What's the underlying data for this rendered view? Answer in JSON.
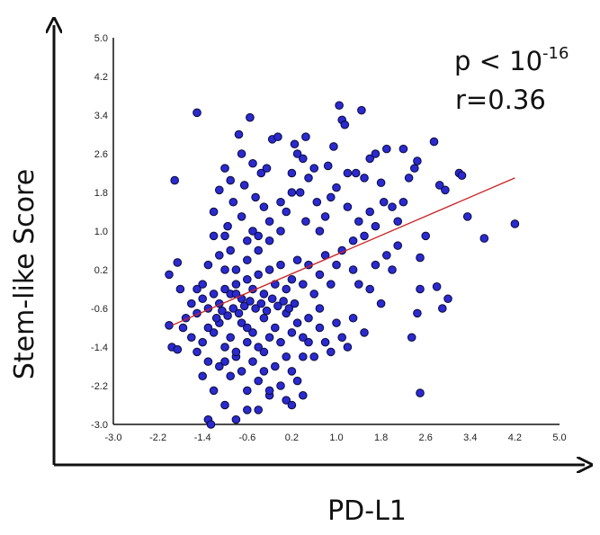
{
  "chart_data": {
    "type": "scatter",
    "xlabel": "PD-L1",
    "ylabel": "Stem-like Score",
    "annotation_p_base": "p < 10",
    "annotation_p_exp": "-16",
    "annotation_r": "r=0.36",
    "xlim": [
      -3.0,
      5.0
    ],
    "ylim": [
      -3.0,
      5.0
    ],
    "xticks": [
      "-3.0",
      "-2.2",
      "-1.4",
      "-0.6",
      "0.2",
      "1.0",
      "1.8",
      "2.6",
      "3.4",
      "4.2",
      "5.0"
    ],
    "yticks": [
      "5.0",
      "4.2",
      "3.4",
      "2.6",
      "1.8",
      "1.0",
      "0.2",
      "-0.6",
      "-1.4",
      "-2.2",
      "-3.0"
    ],
    "grid": false,
    "point_color": "#2a2ad0",
    "point_edge_color": "#0a0a3a",
    "line_color": "#cc2222",
    "regression": {
      "x": [
        -1.95,
        4.2
      ],
      "y": [
        -0.95,
        2.1
      ]
    },
    "points": [
      [
        -1.5,
        3.45
      ],
      [
        -0.55,
        3.35
      ],
      [
        -0.75,
        3.0
      ],
      [
        -1.9,
        2.05
      ],
      [
        -2.0,
        0.1
      ],
      [
        -1.85,
        0.35
      ],
      [
        -1.0,
        2.3
      ],
      [
        -1.2,
        1.4
      ],
      [
        -1.1,
        1.85
      ],
      [
        -0.95,
        1.1
      ],
      [
        -0.65,
        1.95
      ],
      [
        -0.85,
        1.6
      ],
      [
        -0.45,
        1.7
      ],
      [
        -0.35,
        2.2
      ],
      [
        -0.25,
        2.3
      ],
      [
        -0.15,
        2.9
      ],
      [
        -0.05,
        2.95
      ],
      [
        -0.3,
        1.5
      ],
      [
        -0.5,
        1.0
      ],
      [
        -0.7,
        1.3
      ],
      [
        -0.6,
        0.8
      ],
      [
        -0.9,
        0.6
      ],
      [
        -1.1,
        0.5
      ],
      [
        -1.3,
        0.3
      ],
      [
        -1.0,
        0.9
      ],
      [
        -0.8,
        0.2
      ],
      [
        -0.4,
        0.6
      ],
      [
        -0.2,
        0.8
      ],
      [
        0.0,
        1.0
      ],
      [
        0.1,
        1.4
      ],
      [
        0.2,
        2.2
      ],
      [
        0.3,
        2.6
      ],
      [
        0.4,
        2.5
      ],
      [
        0.5,
        2.1
      ],
      [
        0.6,
        2.3
      ],
      [
        0.35,
        1.8
      ],
      [
        0.45,
        1.2
      ],
      [
        0.65,
        1.6
      ],
      [
        0.7,
        1.0
      ],
      [
        0.8,
        1.3
      ],
      [
        0.9,
        1.7
      ],
      [
        1.0,
        1.9
      ],
      [
        1.05,
        3.6
      ],
      [
        1.1,
        3.3
      ],
      [
        1.15,
        3.2
      ],
      [
        1.45,
        3.5
      ],
      [
        1.2,
        2.2
      ],
      [
        1.35,
        2.2
      ],
      [
        1.5,
        2.1
      ],
      [
        1.6,
        2.5
      ],
      [
        1.7,
        2.6
      ],
      [
        1.9,
        2.7
      ],
      [
        1.8,
        2.0
      ],
      [
        1.2,
        1.5
      ],
      [
        1.3,
        0.8
      ],
      [
        1.4,
        1.2
      ],
      [
        1.5,
        0.9
      ],
      [
        1.6,
        1.4
      ],
      [
        1.7,
        1.1
      ],
      [
        1.85,
        1.6
      ],
      [
        2.0,
        1.5
      ],
      [
        2.1,
        1.2
      ],
      [
        2.2,
        1.6
      ],
      [
        2.3,
        2.1
      ],
      [
        2.4,
        2.3
      ],
      [
        2.45,
        2.45
      ],
      [
        2.2,
        2.7
      ],
      [
        2.6,
        0.9
      ],
      [
        2.5,
        0.45
      ],
      [
        2.75,
        2.85
      ],
      [
        2.85,
        1.95
      ],
      [
        2.95,
        1.85
      ],
      [
        3.2,
        2.2
      ],
      [
        3.25,
        2.15
      ],
      [
        3.35,
        1.3
      ],
      [
        3.65,
        0.85
      ],
      [
        4.2,
        1.15
      ],
      [
        2.9,
        -0.6
      ],
      [
        2.8,
        -0.15
      ],
      [
        3.0,
        -0.4
      ],
      [
        2.5,
        -0.2
      ],
      [
        2.45,
        -0.7
      ],
      [
        2.35,
        -1.2
      ],
      [
        2.5,
        -2.35
      ],
      [
        1.6,
        -0.2
      ],
      [
        1.7,
        0.3
      ],
      [
        1.9,
        0.5
      ],
      [
        2.0,
        0.2
      ],
      [
        2.1,
        0.7
      ],
      [
        1.8,
        -0.5
      ],
      [
        1.4,
        -0.1
      ],
      [
        1.3,
        0.2
      ],
      [
        1.1,
        0.6
      ],
      [
        1.0,
        0.3
      ],
      [
        0.9,
        -0.1
      ],
      [
        0.8,
        0.5
      ],
      [
        0.7,
        0.1
      ],
      [
        0.6,
        -0.3
      ],
      [
        0.5,
        0.3
      ],
      [
        0.4,
        -0.1
      ],
      [
        0.3,
        0.4
      ],
      [
        0.2,
        0.0
      ],
      [
        0.1,
        -0.2
      ],
      [
        0.0,
        0.3
      ],
      [
        -0.1,
        -0.1
      ],
      [
        -0.2,
        0.2
      ],
      [
        -0.3,
        -0.3
      ],
      [
        -0.4,
        0.1
      ],
      [
        -0.5,
        -0.2
      ],
      [
        -0.6,
        0.0
      ],
      [
        -0.7,
        -0.4
      ],
      [
        -0.8,
        -0.1
      ],
      [
        -0.9,
        -0.3
      ],
      [
        -1.0,
        -0.2
      ],
      [
        -1.1,
        -0.5
      ],
      [
        -1.2,
        -0.3
      ],
      [
        -1.3,
        -0.6
      ],
      [
        -1.4,
        -0.4
      ],
      [
        -1.5,
        -0.7
      ],
      [
        -1.6,
        -0.5
      ],
      [
        -1.7,
        -0.8
      ],
      [
        -1.8,
        -0.2
      ],
      [
        -1.95,
        -1.4
      ],
      [
        -1.85,
        -1.45
      ],
      [
        -2.0,
        -0.95
      ],
      [
        -1.75,
        -1.0
      ],
      [
        -1.6,
        -1.2
      ],
      [
        -1.5,
        -1.5
      ],
      [
        -1.4,
        -1.3
      ],
      [
        -1.3,
        -1.7
      ],
      [
        -1.2,
        -1.1
      ],
      [
        -1.1,
        -1.8
      ],
      [
        -1.0,
        -1.4
      ],
      [
        -0.9,
        -2.0
      ],
      [
        -0.8,
        -1.6
      ],
      [
        -0.7,
        -1.9
      ],
      [
        -0.6,
        -2.3
      ],
      [
        -0.5,
        -1.7
      ],
      [
        -0.4,
        -2.1
      ],
      [
        -0.3,
        -1.5
      ],
      [
        -0.2,
        -2.4
      ],
      [
        -0.1,
        -1.8
      ],
      [
        0.0,
        -2.2
      ],
      [
        0.1,
        -2.5
      ],
      [
        0.2,
        -1.9
      ],
      [
        0.3,
        -2.1
      ],
      [
        0.4,
        -1.6
      ],
      [
        0.5,
        -1.3
      ],
      [
        0.6,
        -1.6
      ],
      [
        0.7,
        -1.0
      ],
      [
        0.8,
        -1.3
      ],
      [
        0.9,
        -1.5
      ],
      [
        1.0,
        -0.9
      ],
      [
        1.1,
        -1.2
      ],
      [
        1.2,
        -1.4
      ],
      [
        1.3,
        -0.8
      ],
      [
        1.5,
        -1.1
      ],
      [
        0.7,
        -0.6
      ],
      [
        0.5,
        -0.8
      ],
      [
        0.3,
        -0.9
      ],
      [
        0.1,
        -0.7
      ],
      [
        -0.1,
        -1.0
      ],
      [
        -0.3,
        -0.8
      ],
      [
        -0.5,
        -1.1
      ],
      [
        -0.7,
        -0.9
      ],
      [
        -0.9,
        -1.2
      ],
      [
        -1.1,
        -0.9
      ],
      [
        -1.3,
        -1.0
      ],
      [
        -1.5,
        -0.2
      ],
      [
        -1.4,
        -2.0
      ],
      [
        -1.2,
        -2.3
      ],
      [
        -1.0,
        -2.6
      ],
      [
        -0.8,
        -2.9
      ],
      [
        -0.6,
        -2.7
      ],
      [
        -1.3,
        -2.9
      ],
      [
        -1.25,
        -3.0
      ],
      [
        -0.4,
        -2.7
      ],
      [
        -0.2,
        -2.3
      ],
      [
        0.2,
        -2.6
      ],
      [
        0.4,
        -2.4
      ],
      [
        -0.65,
        -0.55
      ],
      [
        -0.55,
        -0.45
      ],
      [
        -0.45,
        -0.6
      ],
      [
        -0.35,
        -0.5
      ],
      [
        -0.25,
        -0.65
      ],
      [
        -0.15,
        -0.4
      ],
      [
        -0.05,
        -0.55
      ],
      [
        0.05,
        -0.45
      ],
      [
        0.15,
        -0.6
      ],
      [
        0.25,
        -0.5
      ],
      [
        -0.75,
        -0.7
      ],
      [
        -0.85,
        -0.6
      ],
      [
        -0.95,
        -0.75
      ],
      [
        -1.05,
        -0.65
      ],
      [
        -1.15,
        -0.8
      ],
      [
        -0.6,
        -1.3
      ],
      [
        -0.4,
        -1.4
      ],
      [
        -0.2,
        -1.2
      ],
      [
        0.0,
        -1.3
      ],
      [
        0.2,
        -1.1
      ],
      [
        0.4,
        -1.2
      ],
      [
        -0.8,
        -1.5
      ],
      [
        -1.0,
        -1.7
      ],
      [
        -0.3,
        -1.9
      ],
      [
        0.1,
        -1.6
      ],
      [
        -0.6,
        -1.0
      ],
      [
        -0.8,
        -0.3
      ],
      [
        -0.6,
        0.4
      ],
      [
        -0.4,
        0.9
      ],
      [
        -0.2,
        1.2
      ],
      [
        0.0,
        1.6
      ],
      [
        0.2,
        1.8
      ],
      [
        -1.2,
        0.9
      ],
      [
        -1.4,
        -0.1
      ],
      [
        -1.0,
        0.2
      ],
      [
        -0.5,
        2.4
      ],
      [
        -0.7,
        2.6
      ],
      [
        0.45,
        2.95
      ],
      [
        0.25,
        2.8
      ],
      [
        0.85,
        2.35
      ],
      [
        0.95,
        2.75
      ],
      [
        -0.9,
        2.05
      ]
    ]
  }
}
